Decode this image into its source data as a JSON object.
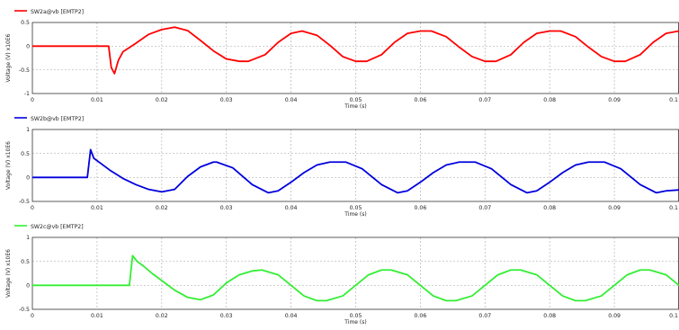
{
  "chart_data": [
    {
      "type": "line",
      "legend": "SW2a@vb [EMTP2]",
      "color": "#ff0000",
      "ylabel": "Voltage (V) x10E6",
      "xlabel": "Time (s)",
      "xlim": [
        0,
        0.1
      ],
      "ylim": [
        -1,
        0.5
      ],
      "xticks": [
        "0",
        "0.01",
        "0.02",
        "0.03",
        "0.04",
        "0.05",
        "0.06",
        "0.07",
        "0.08",
        "0.09",
        "0.1"
      ],
      "yticks": [
        {
          "v": 0.5,
          "t": "0.5"
        },
        {
          "v": 0,
          "t": "0"
        },
        {
          "v": -0.5,
          "t": "-0.5"
        },
        {
          "v": -1,
          "t": "-1"
        }
      ],
      "series": [
        {
          "name": "SW2a@vb [EMTP2]",
          "x": [
            0,
            0.0118,
            0.0122,
            0.0127,
            0.0133,
            0.014,
            0.016,
            0.018,
            0.02,
            0.022,
            0.024,
            0.026,
            0.028,
            0.03,
            0.032,
            0.0334,
            0.036,
            0.038,
            0.04,
            0.0417,
            0.044,
            0.046,
            0.048,
            0.05,
            0.0517,
            0.054,
            0.056,
            0.058,
            0.06,
            0.0617,
            0.064,
            0.066,
            0.068,
            0.07,
            0.0717,
            0.074,
            0.076,
            0.078,
            0.08,
            0.0817,
            0.084,
            0.086,
            0.088,
            0.09,
            0.0917,
            0.094,
            0.096,
            0.098,
            0.1
          ],
          "values": [
            0,
            0,
            -0.45,
            -0.58,
            -0.3,
            -0.12,
            0.06,
            0.25,
            0.35,
            0.4,
            0.33,
            0.12,
            -0.1,
            -0.27,
            -0.32,
            -0.32,
            -0.18,
            0.08,
            0.27,
            0.32,
            0.23,
            0.02,
            -0.22,
            -0.32,
            -0.32,
            -0.18,
            0.08,
            0.27,
            0.32,
            0.32,
            0.2,
            -0.02,
            -0.22,
            -0.32,
            -0.32,
            -0.18,
            0.08,
            0.27,
            0.32,
            0.32,
            0.2,
            -0.02,
            -0.22,
            -0.32,
            -0.32,
            -0.18,
            0.08,
            0.27,
            0.32
          ]
        }
      ]
    },
    {
      "type": "line",
      "legend": "SW2b@vb [EMTP2]",
      "color": "#0000dd",
      "ylabel": "Voltage (V) x10E6",
      "xlabel": "Time (s)",
      "xlim": [
        0,
        0.1
      ],
      "ylim": [
        -0.5,
        1
      ],
      "xticks": [
        "0",
        "0.01",
        "0.02",
        "0.03",
        "0.04",
        "0.05",
        "0.06",
        "0.07",
        "0.08",
        "0.09",
        "0.1"
      ],
      "yticks": [
        {
          "v": 1,
          "t": "1"
        },
        {
          "v": 0.5,
          "t": "0.5"
        },
        {
          "v": 0,
          "t": "0"
        },
        {
          "v": -0.5,
          "t": "-0.5"
        }
      ],
      "series": [
        {
          "name": "SW2b@vb [EMTP2]",
          "x": [
            0,
            0.0085,
            0.009,
            0.0095,
            0.0105,
            0.012,
            0.014,
            0.016,
            0.018,
            0.02,
            0.022,
            0.024,
            0.026,
            0.028,
            0.0285,
            0.031,
            0.034,
            0.0365,
            0.038,
            0.04,
            0.042,
            0.044,
            0.046,
            0.048,
            0.0485,
            0.051,
            0.054,
            0.0565,
            0.058,
            0.06,
            0.062,
            0.064,
            0.066,
            0.068,
            0.0685,
            0.071,
            0.074,
            0.0765,
            0.078,
            0.08,
            0.082,
            0.084,
            0.086,
            0.088,
            0.0885,
            0.091,
            0.094,
            0.0965,
            0.098,
            0.1
          ],
          "values": [
            0,
            0,
            0.58,
            0.4,
            0.3,
            0.15,
            -0.02,
            -0.15,
            -0.25,
            -0.3,
            -0.25,
            0.02,
            0.22,
            0.32,
            0.32,
            0.2,
            -0.15,
            -0.32,
            -0.28,
            -0.1,
            0.1,
            0.26,
            0.32,
            0.32,
            0.32,
            0.18,
            -0.15,
            -0.32,
            -0.28,
            -0.1,
            0.1,
            0.26,
            0.32,
            0.32,
            0.32,
            0.18,
            -0.15,
            -0.32,
            -0.28,
            -0.1,
            0.1,
            0.26,
            0.32,
            0.32,
            0.32,
            0.18,
            -0.15,
            -0.32,
            -0.28,
            -0.26
          ]
        }
      ]
    },
    {
      "type": "line",
      "legend": "SW2c@vb [EMTP2]",
      "color": "#33ee33",
      "ylabel": "Voltage (V) x10E6",
      "xlabel": "Time (s)",
      "xlim": [
        0,
        0.1
      ],
      "ylim": [
        -0.5,
        1
      ],
      "xticks": [
        "0",
        "0.01",
        "0.02",
        "0.03",
        "0.04",
        "0.05",
        "0.06",
        "0.07",
        "0.08",
        "0.09",
        "0.1"
      ],
      "yticks": [
        {
          "v": 1,
          "t": "1"
        },
        {
          "v": 0.5,
          "t": "0.5"
        },
        {
          "v": 0,
          "t": "0"
        },
        {
          "v": -0.5,
          "t": "-0.5"
        }
      ],
      "series": [
        {
          "name": "SW2c@vb [EMTP2]",
          "x": [
            0,
            0.015,
            0.0155,
            0.0162,
            0.0172,
            0.0185,
            0.02,
            0.022,
            0.024,
            0.026,
            0.028,
            0.03,
            0.032,
            0.034,
            0.0355,
            0.038,
            0.04,
            0.042,
            0.044,
            0.0455,
            0.048,
            0.05,
            0.052,
            0.054,
            0.0555,
            0.058,
            0.06,
            0.062,
            0.064,
            0.0655,
            0.068,
            0.07,
            0.072,
            0.074,
            0.0755,
            0.078,
            0.08,
            0.082,
            0.084,
            0.0855,
            0.088,
            0.09,
            0.092,
            0.094,
            0.0955,
            0.098,
            0.1
          ],
          "values": [
            0,
            0,
            0.62,
            0.5,
            0.4,
            0.25,
            0.1,
            -0.1,
            -0.25,
            -0.3,
            -0.2,
            0.05,
            0.22,
            0.3,
            0.32,
            0.22,
            0.0,
            -0.22,
            -0.32,
            -0.32,
            -0.22,
            0.0,
            0.22,
            0.32,
            0.32,
            0.22,
            0.0,
            -0.22,
            -0.32,
            -0.32,
            -0.22,
            0.0,
            0.22,
            0.32,
            0.32,
            0.22,
            0.0,
            -0.22,
            -0.32,
            -0.32,
            -0.22,
            0.0,
            0.22,
            0.32,
            0.32,
            0.22,
            0.0
          ]
        }
      ]
    }
  ]
}
